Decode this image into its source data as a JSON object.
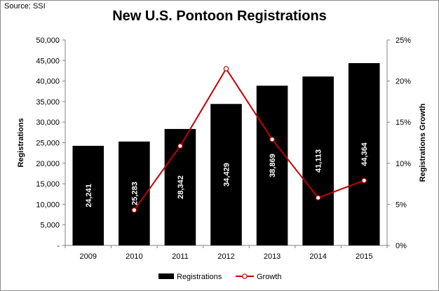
{
  "source": "Source: SSI",
  "chart_data": {
    "type": "bar",
    "title": "New U.S. Pontoon Registrations",
    "categories": [
      "2009",
      "2010",
      "2011",
      "2012",
      "2013",
      "2014",
      "2015"
    ],
    "series": [
      {
        "name": "Registrations",
        "type": "bar",
        "axis": "left",
        "color": "#000000",
        "values": [
          24241,
          25283,
          28342,
          34429,
          38869,
          41113,
          44364
        ],
        "labels": [
          "24,241",
          "25,283",
          "28,342",
          "34,429",
          "38,869",
          "41,113",
          "44,364"
        ]
      },
      {
        "name": "Growth",
        "type": "line",
        "axis": "right",
        "color": "#c00000",
        "values": [
          null,
          4.3,
          12.1,
          21.5,
          12.9,
          5.8,
          7.9
        ]
      }
    ],
    "ylabel": "Registrations",
    "ylabel_right": "Registrations Growth",
    "ylim": [
      0,
      50000
    ],
    "ylim_right": [
      0,
      25
    ],
    "yticks": [
      "-",
      "5,000",
      "10,000",
      "15,000",
      "20,000",
      "25,000",
      "30,000",
      "35,000",
      "40,000",
      "45,000",
      "50,000"
    ],
    "yticks_right": [
      "0%",
      "5%",
      "10%",
      "15%",
      "20%",
      "25%"
    ],
    "grid": false,
    "legend": "bottom"
  }
}
